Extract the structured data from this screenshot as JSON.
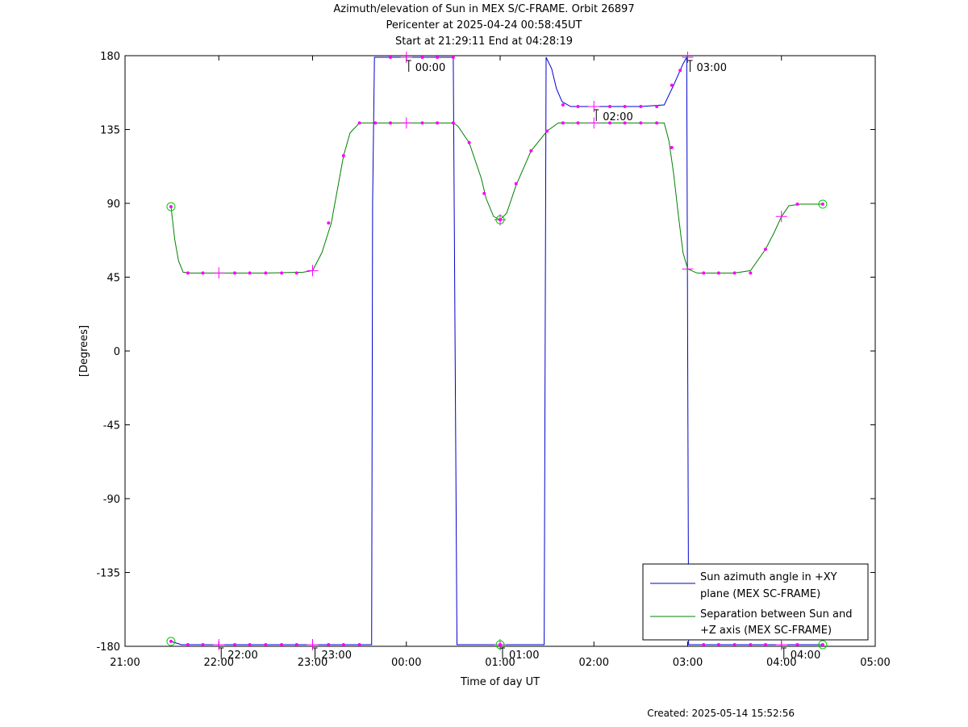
{
  "title_lines": [
    "Azimuth/elevation of Sun in MEX S/C-FRAME.  Orbit 26897",
    "Pericenter at 2025-04-24 00:58:45UT",
    "Start at 21:29:11 End at 04:28:19"
  ],
  "created": "Created: 2025-05-14 15:52:56",
  "chart_data": {
    "type": "line",
    "xlabel": "Time of day UT",
    "ylabel": "[Degrees]",
    "x_unit": "hours of day UT (continuing past midnight as 24+)",
    "xlim": [
      21,
      29
    ],
    "ylim": [
      -180,
      180
    ],
    "x_ticks": [
      {
        "v": 21,
        "label": "21:00"
      },
      {
        "v": 22,
        "label": "22:00"
      },
      {
        "v": 23,
        "label": "23:00"
      },
      {
        "v": 24,
        "label": "00:00"
      },
      {
        "v": 25,
        "label": "01:00"
      },
      {
        "v": 26,
        "label": "02:00"
      },
      {
        "v": 27,
        "label": "03:00"
      },
      {
        "v": 28,
        "label": "04:00"
      },
      {
        "v": 29,
        "label": "05:00"
      }
    ],
    "y_ticks": [
      180,
      135,
      90,
      45,
      0,
      -45,
      -90,
      -135,
      -180
    ],
    "grid": false,
    "legend_position": "bottom-right",
    "series": [
      {
        "name": "Sun azimuth angle in +XY plane (MEX SC-FRAME)",
        "legend_lines": [
          "Sun azimuth angle in +XY",
          "plane (MEX SC-FRAME)"
        ],
        "color": "#0000cc",
        "points": [
          [
            21.49,
            -177
          ],
          [
            21.6,
            -179
          ],
          [
            22.0,
            -179
          ],
          [
            23.0,
            -179
          ],
          [
            23.63,
            -179
          ],
          [
            23.64,
            90
          ],
          [
            23.66,
            179
          ],
          [
            24.0,
            179
          ],
          [
            24.5,
            179
          ],
          [
            24.52,
            0
          ],
          [
            24.54,
            -179
          ],
          [
            25.0,
            -179
          ],
          [
            25.47,
            -179
          ],
          [
            25.48,
            0
          ],
          [
            25.49,
            179
          ],
          [
            25.55,
            172
          ],
          [
            25.6,
            160
          ],
          [
            25.66,
            152
          ],
          [
            25.75,
            149
          ],
          [
            26.0,
            149
          ],
          [
            26.5,
            149
          ],
          [
            26.75,
            150
          ],
          [
            26.85,
            162
          ],
          [
            26.95,
            175
          ],
          [
            26.99,
            179
          ],
          [
            27.0,
            0
          ],
          [
            27.01,
            -179
          ],
          [
            27.5,
            -179
          ],
          [
            28.0,
            -179
          ],
          [
            28.44,
            -179
          ]
        ]
      },
      {
        "name": "Separation between Sun and +Z axis (MEX SC-FRAME)",
        "legend_lines": [
          "Separation between Sun and",
          "+Z axis (MEX SC-FRAME)"
        ],
        "color": "#008000",
        "points": [
          [
            21.49,
            88
          ],
          [
            21.53,
            68
          ],
          [
            21.57,
            55
          ],
          [
            21.62,
            48
          ],
          [
            21.7,
            47.5
          ],
          [
            22.0,
            47.5
          ],
          [
            22.5,
            47.5
          ],
          [
            22.9,
            48
          ],
          [
            22.95,
            48.5
          ],
          [
            23.0,
            49
          ],
          [
            23.1,
            60
          ],
          [
            23.2,
            78
          ],
          [
            23.33,
            119
          ],
          [
            23.4,
            133
          ],
          [
            23.5,
            139
          ],
          [
            24.0,
            139
          ],
          [
            24.5,
            139
          ],
          [
            24.55,
            137
          ],
          [
            24.67,
            127
          ],
          [
            24.8,
            105
          ],
          [
            24.85,
            93
          ],
          [
            24.93,
            82
          ],
          [
            25.0,
            80
          ],
          [
            25.07,
            84
          ],
          [
            25.17,
            101
          ],
          [
            25.33,
            122
          ],
          [
            25.5,
            134
          ],
          [
            25.62,
            139
          ],
          [
            26.0,
            139
          ],
          [
            26.75,
            139
          ],
          [
            26.8,
            128
          ],
          [
            26.85,
            108
          ],
          [
            26.9,
            83
          ],
          [
            26.95,
            60
          ],
          [
            27.0,
            50
          ],
          [
            27.1,
            47.5
          ],
          [
            27.5,
            47.5
          ],
          [
            27.67,
            49
          ],
          [
            27.83,
            62
          ],
          [
            27.92,
            72
          ],
          [
            28.0,
            82
          ],
          [
            28.08,
            88.5
          ],
          [
            28.2,
            89.5
          ],
          [
            28.44,
            89.5
          ]
        ]
      }
    ],
    "markers": {
      "dots": [
        [
          21.67,
          -179
        ],
        [
          21.83,
          -179
        ],
        [
          22.17,
          -179
        ],
        [
          22.33,
          -179
        ],
        [
          22.5,
          -179
        ],
        [
          22.67,
          -179
        ],
        [
          22.83,
          -179
        ],
        [
          23.17,
          -179
        ],
        [
          23.33,
          -179
        ],
        [
          23.5,
          -179
        ],
        [
          23.83,
          179
        ],
        [
          24.17,
          179
        ],
        [
          24.33,
          179
        ],
        [
          24.5,
          179
        ],
        [
          25.67,
          150
        ],
        [
          25.83,
          149
        ],
        [
          26.17,
          149
        ],
        [
          26.33,
          149
        ],
        [
          26.5,
          149
        ],
        [
          26.67,
          149
        ],
        [
          26.83,
          162
        ],
        [
          26.92,
          171
        ],
        [
          27.17,
          -179
        ],
        [
          27.33,
          -179
        ],
        [
          27.5,
          -179
        ],
        [
          27.67,
          -179
        ],
        [
          27.83,
          -179
        ],
        [
          28.17,
          -179
        ],
        [
          21.67,
          47.5
        ],
        [
          21.83,
          47.5
        ],
        [
          22.17,
          47.5
        ],
        [
          22.33,
          47.5
        ],
        [
          22.5,
          47.5
        ],
        [
          22.67,
          47.5
        ],
        [
          22.83,
          47.5
        ],
        [
          23.17,
          78
        ],
        [
          23.33,
          119
        ],
        [
          23.5,
          139
        ],
        [
          23.67,
          139
        ],
        [
          23.83,
          139
        ],
        [
          24.17,
          139
        ],
        [
          24.33,
          139
        ],
        [
          24.5,
          139
        ],
        [
          24.67,
          127
        ],
        [
          24.83,
          96
        ],
        [
          25.17,
          102
        ],
        [
          25.33,
          122
        ],
        [
          25.5,
          134
        ],
        [
          25.67,
          139
        ],
        [
          25.83,
          139
        ],
        [
          26.17,
          139
        ],
        [
          26.33,
          139
        ],
        [
          26.5,
          139
        ],
        [
          26.67,
          139
        ],
        [
          26.83,
          124
        ],
        [
          27.17,
          47.5
        ],
        [
          27.33,
          47.5
        ],
        [
          27.5,
          47.5
        ],
        [
          27.67,
          47.5
        ],
        [
          27.83,
          62
        ],
        [
          28.17,
          89.5
        ]
      ],
      "hour_crosses": [
        [
          22.0,
          -179
        ],
        [
          23.0,
          -179
        ],
        [
          24.0,
          179
        ],
        [
          25.0,
          -179
        ],
        [
          26.0,
          149
        ],
        [
          27.0,
          179
        ],
        [
          28.0,
          -179
        ],
        [
          22.0,
          47.5
        ],
        [
          23.0,
          49
        ],
        [
          24.0,
          139
        ],
        [
          25.0,
          80
        ],
        [
          26.0,
          139
        ],
        [
          27.0,
          50
        ],
        [
          28.0,
          82
        ]
      ],
      "endpoint_circles": [
        [
          21.49,
          -177
        ],
        [
          21.49,
          88
        ],
        [
          25.0,
          -179
        ],
        [
          25.0,
          80
        ],
        [
          28.44,
          -179
        ],
        [
          28.44,
          89.5
        ]
      ]
    },
    "annotations": [
      {
        "label": "22:00",
        "x": 22.0,
        "y": -179,
        "anchor": "below"
      },
      {
        "label": "23:00",
        "x": 23.0,
        "y": -179,
        "anchor": "below"
      },
      {
        "label": "00:00",
        "x": 24.0,
        "y": 179,
        "anchor": "below"
      },
      {
        "label": "01:00",
        "x": 25.0,
        "y": -179,
        "anchor": "below"
      },
      {
        "label": "02:00",
        "x": 26.0,
        "y": 149,
        "anchor": "below"
      },
      {
        "label": "03:00",
        "x": 27.0,
        "y": 179,
        "anchor": "below"
      },
      {
        "label": "04:00",
        "x": 28.0,
        "y": -179,
        "anchor": "below"
      }
    ]
  }
}
